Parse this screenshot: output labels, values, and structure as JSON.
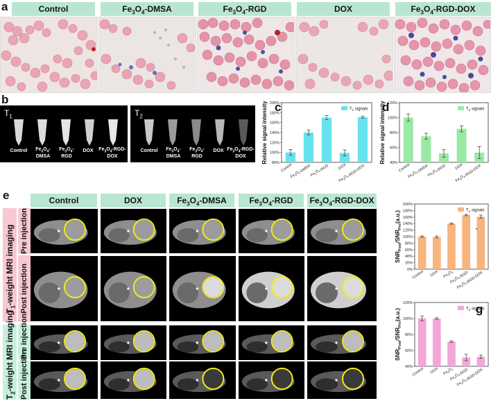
{
  "panels": {
    "a": "a",
    "b": "b",
    "c": "c",
    "d": "d",
    "e": "e",
    "f": "f",
    "g": "g"
  },
  "panel_a": {
    "headers": [
      "Control",
      "Fe3O4-DMSA",
      "Fe3O4-RGD",
      "DOX",
      "Fe3O4-RGD-DOX"
    ]
  },
  "panel_b": {
    "t1_label": "T1",
    "t2_label": "T2",
    "tube_labels": [
      "Control",
      "Fe3O4-DMSA",
      "Fe3O4-RGD",
      "DOX",
      "Fe3O4-RGD-DOX"
    ]
  },
  "panel_e": {
    "headers": [
      "Control",
      "DOX",
      "Fe3O4-DMSA",
      "Fe3O4-RGD",
      "Fe3O4-RGD-DOX"
    ],
    "row_group_1": "T1-weight MRI imaging",
    "row_group_2": "T2-weight MRI imaging",
    "pre": "Pre injection",
    "post": "Post injection"
  },
  "colors": {
    "header_bg": "#b9e6d3",
    "t1_bar": "#66e3ee",
    "t2_bar": "#99eaa4",
    "snr_t1_bar": "#f7b47d",
    "snr_t2_bar": "#f3a6d7",
    "circle": "#f2ea1a"
  },
  "chart_data": [
    {
      "id": "c",
      "type": "bar",
      "ylabel": "Relative signal intensity",
      "legend": "T1 signals",
      "categories": [
        "Control",
        "Fe3O4-DMSA",
        "Fe3O4-RGD",
        "DOX",
        "Fe3O4-RGD-DOX"
      ],
      "values": [
        100,
        140,
        170,
        99,
        171
      ],
      "errors": [
        6,
        5,
        4,
        6,
        2
      ],
      "ylim": [
        80,
        200
      ],
      "yticks": [
        "80%",
        "100%",
        "120%",
        "140%",
        "160%",
        "180%",
        "200%"
      ]
    },
    {
      "id": "d",
      "type": "bar",
      "ylabel": "Relative signal intensity",
      "legend": "T2 signals",
      "categories": [
        "Control",
        "Fe3O4-DMSA",
        "Fe3O4-RGD",
        "DOX",
        "Fe3O4-RGD-DOX"
      ],
      "values": [
        100,
        75,
        52,
        85,
        53
      ],
      "errors": [
        5,
        4,
        5,
        4,
        8
      ],
      "ylim": [
        40,
        120
      ],
      "yticks": [
        "40%",
        "60%",
        "80%",
        "100%",
        "120%"
      ]
    },
    {
      "id": "f",
      "type": "bar",
      "ylabel": "SNRPost/SNRPre(a.u.)",
      "legend": "T1 signals",
      "categories": [
        "Control",
        "DOX",
        "Fe3O4",
        "Fe3O4-RGD",
        "Fe3O4-RGD-DOX"
      ],
      "values": [
        100,
        99,
        140,
        166,
        161
      ],
      "errors": [
        2,
        3,
        2,
        2,
        5
      ],
      "ylim": [
        0,
        200
      ],
      "yticks": [
        "0%",
        "20%",
        "40%",
        "60%",
        "80%",
        "100%",
        "120%",
        "140%",
        "160%",
        "180%",
        "200%"
      ]
    },
    {
      "id": "g",
      "type": "bar",
      "ylabel": "SNRPost/SNRPre(a.u.)",
      "legend": "T2 signals",
      "categories": [
        "Control",
        "DOX",
        "Fe3O4",
        "Fe3O4-RGD",
        "Fe3O4-RGD-DOX"
      ],
      "values": [
        100,
        100,
        71,
        51,
        52
      ],
      "errors": [
        3,
        1,
        1,
        4,
        2
      ],
      "ylim": [
        40,
        120
      ],
      "yticks": [
        "40%",
        "60%",
        "80%",
        "100%",
        "120%"
      ]
    }
  ]
}
